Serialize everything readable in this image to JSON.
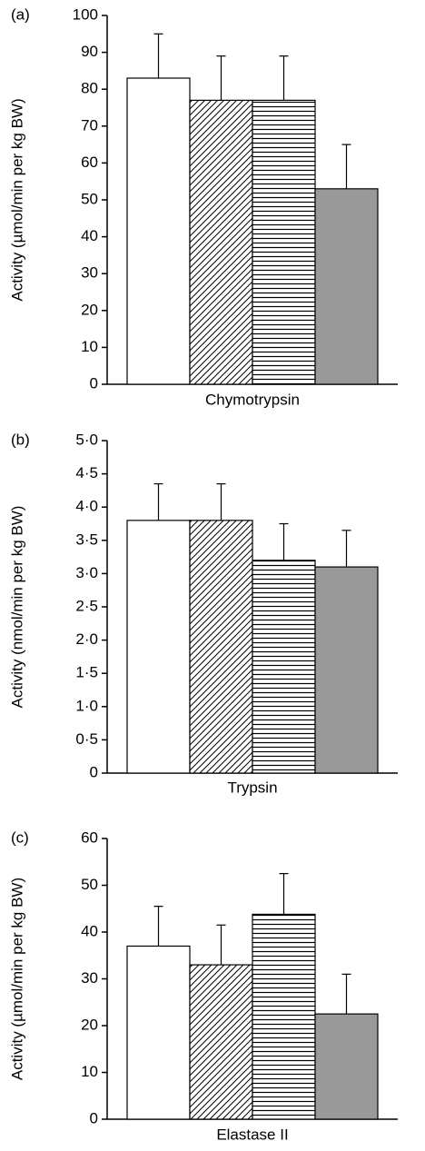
{
  "chart_data": [
    {
      "type": "bar",
      "panel_label": "(a)",
      "xlabel": "Chymotrypsin",
      "ylabel": "Activity (µmol/min per kg BW)",
      "ylim": [
        0,
        100
      ],
      "yticks": [
        0,
        10,
        20,
        30,
        40,
        50,
        60,
        70,
        80,
        90,
        100
      ],
      "series": [
        {
          "color": "#ffffff",
          "pattern": "none",
          "values": [
            83
          ],
          "errors": [
            12
          ]
        },
        {
          "color": "#ffffff",
          "pattern": "diagonal",
          "values": [
            77
          ],
          "errors": [
            12
          ]
        },
        {
          "color": "#ffffff",
          "pattern": "horizontal",
          "values": [
            77
          ],
          "errors": [
            12
          ]
        },
        {
          "color": "#999999",
          "pattern": "none",
          "values": [
            53
          ],
          "errors": [
            12
          ]
        }
      ]
    },
    {
      "type": "bar",
      "panel_label": "(b)",
      "xlabel": "Trypsin",
      "ylabel": "Activity (nmol/min per kg BW)",
      "ylim": [
        0,
        5
      ],
      "yticks": [
        0,
        {
          "value": 0.5,
          "label": "0·5"
        },
        {
          "value": 1,
          "label": "1·0"
        },
        {
          "value": 1.5,
          "label": "1·5"
        },
        {
          "value": 2,
          "label": "2·0"
        },
        {
          "value": 2.5,
          "label": "2·5"
        },
        {
          "value": 3,
          "label": "3·0"
        },
        {
          "value": 3.5,
          "label": "3·5"
        },
        {
          "value": 4,
          "label": "4·0"
        },
        {
          "value": 4.5,
          "label": "4·5"
        },
        {
          "value": 5,
          "label": "5·0"
        }
      ],
      "series": [
        {
          "color": "#ffffff",
          "pattern": "none",
          "values": [
            3.8
          ],
          "errors": [
            0.55
          ]
        },
        {
          "color": "#ffffff",
          "pattern": "diagonal",
          "values": [
            3.8
          ],
          "errors": [
            0.55
          ]
        },
        {
          "color": "#ffffff",
          "pattern": "horizontal",
          "values": [
            3.2
          ],
          "errors": [
            0.55
          ]
        },
        {
          "color": "#999999",
          "pattern": "none",
          "values": [
            3.1
          ],
          "errors": [
            0.55
          ]
        }
      ]
    },
    {
      "type": "bar",
      "panel_label": "(c)",
      "xlabel": "Elastase II",
      "ylabel": "Activity (µmol/min per kg BW)",
      "ylim": [
        0,
        60
      ],
      "yticks": [
        0,
        10,
        20,
        30,
        40,
        50,
        60
      ],
      "series": [
        {
          "color": "#ffffff",
          "pattern": "none",
          "values": [
            37
          ],
          "errors": [
            8.5
          ]
        },
        {
          "color": "#ffffff",
          "pattern": "diagonal",
          "values": [
            33
          ],
          "errors": [
            8.5
          ]
        },
        {
          "color": "#ffffff",
          "pattern": "horizontal",
          "values": [
            43.8
          ],
          "errors": [
            8.7
          ]
        },
        {
          "color": "#999999",
          "pattern": "none",
          "values": [
            22.5
          ],
          "errors": [
            8.5
          ]
        }
      ]
    }
  ]
}
